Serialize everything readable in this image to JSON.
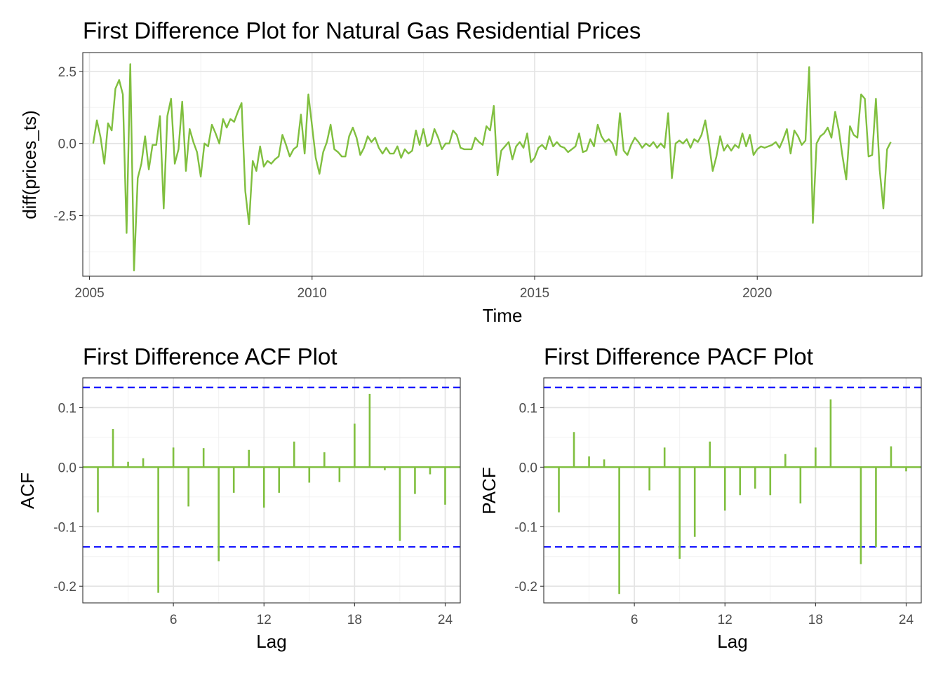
{
  "colors": {
    "series": "#80bf3f",
    "ci": "#0000ff",
    "background": "#ffffff"
  },
  "chart_data": [
    {
      "type": "line",
      "title": "First Difference Plot for Natural Gas Residential Prices",
      "xlabel": "Time",
      "ylabel": "diff(prices_ts)",
      "xlim": [
        2004.85,
        2023.7
      ],
      "ylim": [
        -4.6,
        3.15
      ],
      "x_ticks": [
        2005,
        2010,
        2015,
        2020
      ],
      "x_tick_labels": [
        "2005",
        "2010",
        "2015",
        "2020"
      ],
      "y_ticks": [
        2.5,
        0.0,
        -2.5
      ],
      "y_tick_labels": [
        "2.5",
        "0.0",
        "-2.5"
      ],
      "grid": true,
      "start_year": 2005.0833,
      "frequency": 12,
      "series": [
        {
          "values": [
            0.0,
            0.8,
            0.2,
            -0.7,
            0.7,
            0.45,
            1.9,
            2.2,
            1.7,
            -3.1,
            2.75,
            -4.4,
            -1.2,
            -0.7,
            0.25,
            -0.9,
            -0.05,
            -0.05,
            0.95,
            -2.25,
            0.95,
            1.55,
            -0.7,
            -0.2,
            1.45,
            -0.95,
            0.5,
            0.05,
            -0.3,
            -1.15,
            0.0,
            -0.1,
            0.65,
            0.35,
            0.0,
            0.85,
            0.55,
            0.85,
            0.75,
            1.1,
            1.4,
            -1.65,
            -2.8,
            -0.6,
            -0.95,
            -0.1,
            -0.8,
            -0.6,
            -0.7,
            -0.55,
            -0.45,
            0.3,
            -0.05,
            -0.45,
            -0.2,
            -0.1,
            1.0,
            -0.35,
            1.7,
            0.6,
            -0.5,
            -1.05,
            -0.3,
            0.05,
            0.65,
            -0.2,
            -0.3,
            -0.45,
            -0.45,
            0.25,
            0.55,
            0.2,
            -0.4,
            -0.15,
            0.25,
            0.05,
            0.2,
            -0.15,
            -0.35,
            -0.15,
            -0.35,
            -0.35,
            -0.1,
            -0.5,
            -0.2,
            -0.35,
            -0.25,
            0.45,
            -0.05,
            0.5,
            -0.1,
            0.0,
            0.5,
            0.2,
            -0.2,
            0.0,
            0.0,
            0.45,
            0.3,
            -0.15,
            -0.2,
            -0.2,
            -0.2,
            0.2,
            0.05,
            -0.05,
            0.6,
            0.45,
            1.3,
            -1.1,
            -0.25,
            -0.1,
            0.05,
            -0.55,
            -0.1,
            0.05,
            -0.15,
            0.35,
            -0.65,
            -0.5,
            -0.15,
            -0.05,
            -0.2,
            0.25,
            -0.1,
            0.05,
            -0.1,
            -0.15,
            -0.3,
            -0.2,
            -0.1,
            0.35,
            -0.3,
            -0.25,
            0.15,
            -0.1,
            0.65,
            0.25,
            0.05,
            0.15,
            0.0,
            -0.4,
            1.05,
            -0.25,
            -0.4,
            -0.05,
            0.2,
            0.05,
            -0.15,
            0.0,
            -0.1,
            0.05,
            -0.15,
            0.0,
            -0.15,
            1.05,
            -1.2,
            0.0,
            0.1,
            0.0,
            0.15,
            -0.15,
            0.15,
            0.05,
            0.3,
            0.8,
            0.0,
            -0.95,
            -0.45,
            0.25,
            -0.25,
            -0.05,
            -0.25,
            -0.05,
            -0.15,
            0.35,
            -0.1,
            0.3,
            -0.4,
            -0.2,
            -0.1,
            -0.15,
            -0.1,
            -0.05,
            0.05,
            -0.15,
            0.15,
            0.5,
            -0.35,
            0.45,
            0.25,
            -0.05,
            0.1,
            2.65,
            -2.75,
            0.0,
            0.25,
            0.35,
            0.55,
            0.2,
            1.1,
            0.45,
            -0.45,
            -1.25,
            0.6,
            0.3,
            0.2,
            1.7,
            1.55,
            -0.45,
            -0.4,
            1.55,
            -0.9,
            -2.25,
            -0.2,
            0.05
          ]
        }
      ]
    },
    {
      "type": "bar",
      "title": "First Difference ACF Plot",
      "xlabel": "Lag",
      "ylabel": "ACF",
      "xlim": [
        0,
        25
      ],
      "ylim": [
        -0.228,
        0.15
      ],
      "x_ticks": [
        6,
        12,
        18,
        24
      ],
      "x_tick_labels": [
        "6",
        "12",
        "18",
        "24"
      ],
      "y_ticks": [
        0.1,
        0.0,
        -0.1,
        -0.2
      ],
      "y_tick_labels": [
        "0.1",
        "0.0",
        "-0.1",
        "-0.2"
      ],
      "ci": 0.134,
      "grid": true,
      "lags": [
        1,
        2,
        3,
        4,
        5,
        6,
        7,
        8,
        9,
        10,
        11,
        12,
        13,
        14,
        15,
        16,
        17,
        18,
        19,
        20,
        21,
        22,
        23,
        24
      ],
      "values": [
        -0.076,
        0.064,
        0.009,
        0.015,
        -0.211,
        0.033,
        -0.066,
        0.032,
        -0.158,
        -0.043,
        0.029,
        -0.068,
        -0.043,
        0.043,
        -0.026,
        0.025,
        -0.025,
        0.073,
        0.123,
        -0.005,
        -0.124,
        -0.045,
        -0.012,
        -0.063
      ]
    },
    {
      "type": "bar",
      "title": "First Difference PACF Plot",
      "xlabel": "Lag",
      "ylabel": "PACF",
      "xlim": [
        0,
        25
      ],
      "ylim": [
        -0.228,
        0.15
      ],
      "x_ticks": [
        6,
        12,
        18,
        24
      ],
      "x_tick_labels": [
        "6",
        "12",
        "18",
        "24"
      ],
      "y_ticks": [
        0.1,
        0.0,
        -0.1,
        -0.2
      ],
      "y_tick_labels": [
        "0.1",
        "0.0",
        "-0.1",
        "-0.2"
      ],
      "ci": 0.134,
      "grid": true,
      "lags": [
        1,
        2,
        3,
        4,
        5,
        6,
        7,
        8,
        9,
        10,
        11,
        12,
        13,
        14,
        15,
        16,
        17,
        18,
        19,
        20,
        21,
        22,
        23,
        24
      ],
      "values": [
        -0.076,
        0.059,
        0.018,
        0.013,
        -0.213,
        0.0,
        -0.039,
        0.033,
        -0.154,
        -0.117,
        0.043,
        -0.073,
        -0.047,
        -0.036,
        -0.047,
        0.022,
        -0.061,
        0.033,
        0.114,
        0.0,
        -0.163,
        -0.134,
        0.035,
        -0.007
      ]
    }
  ]
}
